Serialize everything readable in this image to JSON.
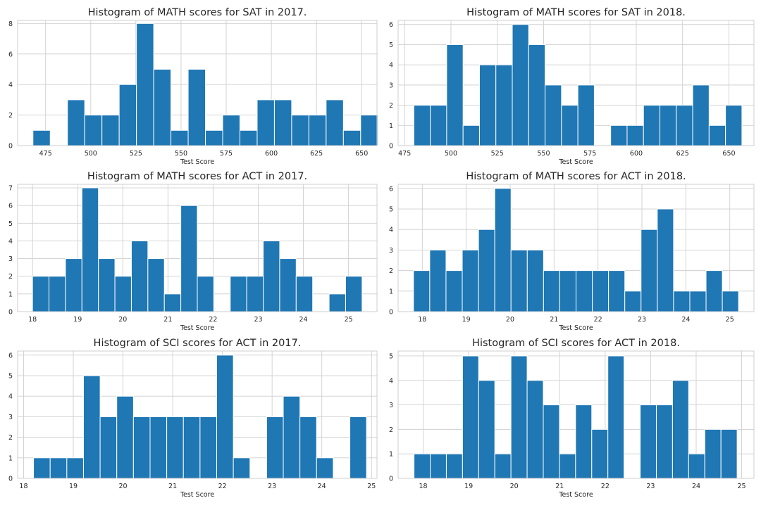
{
  "colors": {
    "bar": "#1f77b4",
    "grid": "#cfcfcf",
    "text": "#262626",
    "background": "#ffffff"
  },
  "chart_data": [
    {
      "type": "bar",
      "title": "Histogram of MATH scores for SAT in 2017.",
      "xlabel": "Test Score",
      "ylabel": "",
      "grid": true,
      "xlim": [
        459.5,
        658.5
      ],
      "ylim": [
        0,
        8.2
      ],
      "xticks": [
        475,
        500,
        525,
        550,
        575,
        600,
        625,
        650
      ],
      "xtick_labels": [
        "475",
        "500",
        "525",
        "550",
        "575",
        "600",
        "625",
        "650"
      ],
      "yticks": [
        0,
        2,
        4,
        6,
        8
      ],
      "ytick_labels": [
        "0",
        "2",
        "4",
        "6",
        "8"
      ],
      "bin_start": 468,
      "bin_width": 9.55,
      "values": [
        1,
        0,
        3,
        2,
        2,
        4,
        8,
        5,
        1,
        5,
        1,
        2,
        1,
        3,
        3,
        2,
        2,
        3,
        1,
        2
      ]
    },
    {
      "type": "bar",
      "title": "Histogram of MATH scores for SAT in 2018.",
      "xlabel": "Test Score",
      "ylabel": "",
      "grid": true,
      "xlim": [
        471.5,
        663.5
      ],
      "ylim": [
        0,
        6.2
      ],
      "xticks": [
        475,
        500,
        525,
        550,
        575,
        600,
        625,
        650
      ],
      "xtick_labels": [
        "475",
        "500",
        "525",
        "550",
        "575",
        "600",
        "625",
        "650"
      ],
      "yticks": [
        0,
        1,
        2,
        3,
        4,
        5,
        6
      ],
      "ytick_labels": [
        "0",
        "1",
        "2",
        "3",
        "4",
        "5",
        "6"
      ],
      "bin_start": 480,
      "bin_width": 8.85,
      "values": [
        2,
        2,
        5,
        1,
        4,
        4,
        6,
        5,
        3,
        2,
        3,
        0,
        1,
        1,
        2,
        2,
        2,
        3,
        1,
        2
      ]
    },
    {
      "type": "bar",
      "title": "Histogram of MATH scores for ACT in 2017.",
      "xlabel": "Test Score",
      "ylabel": "",
      "grid": true,
      "xlim": [
        17.67,
        25.63
      ],
      "ylim": [
        0,
        7.2
      ],
      "xticks": [
        18,
        19,
        20,
        21,
        22,
        23,
        24,
        25
      ],
      "xtick_labels": [
        "18",
        "19",
        "20",
        "21",
        "22",
        "23",
        "24",
        "25"
      ],
      "yticks": [
        0,
        1,
        2,
        3,
        4,
        5,
        6,
        7
      ],
      "ytick_labels": [
        "0",
        "1",
        "2",
        "3",
        "4",
        "5",
        "6",
        "7"
      ],
      "bin_start": 18.0,
      "bin_width": 0.365,
      "values": [
        2,
        2,
        3,
        7,
        3,
        2,
        4,
        3,
        1,
        6,
        2,
        0,
        2,
        2,
        4,
        3,
        2,
        0,
        1,
        2
      ]
    },
    {
      "type": "bar",
      "title": "Histogram of MATH scores for ACT in 2018.",
      "xlabel": "Test Score",
      "ylabel": "",
      "grid": true,
      "xlim": [
        17.45,
        25.55
      ],
      "ylim": [
        0,
        6.2
      ],
      "xticks": [
        18,
        19,
        20,
        21,
        22,
        23,
        24,
        25
      ],
      "xtick_labels": [
        "18",
        "19",
        "20",
        "21",
        "22",
        "23",
        "24",
        "25"
      ],
      "yticks": [
        0,
        1,
        2,
        3,
        4,
        5,
        6
      ],
      "ytick_labels": [
        "0",
        "1",
        "2",
        "3",
        "4",
        "5",
        "6"
      ],
      "bin_start": 17.8,
      "bin_width": 0.37,
      "values": [
        2,
        3,
        2,
        3,
        4,
        6,
        3,
        3,
        2,
        2,
        2,
        2,
        2,
        1,
        4,
        5,
        1,
        1,
        2,
        1
      ]
    },
    {
      "type": "bar",
      "title": "Histogram of SCI scores for ACT in 2017.",
      "xlabel": "Test Score",
      "ylabel": "",
      "grid": true,
      "xlim": [
        17.88,
        25.11
      ],
      "ylim": [
        0,
        6.2
      ],
      "xticks": [
        18,
        19,
        20,
        21,
        22,
        23,
        24,
        25
      ],
      "xtick_labels": [
        "18",
        "19",
        "20",
        "21",
        "22",
        "23",
        "24",
        "25"
      ],
      "yticks": [
        0,
        1,
        2,
        3,
        4,
        5,
        6
      ],
      "ytick_labels": [
        "0",
        "1",
        "2",
        "3",
        "4",
        "5",
        "6"
      ],
      "bin_start": 18.2,
      "bin_width": 0.335,
      "values": [
        1,
        1,
        1,
        5,
        3,
        4,
        3,
        3,
        3,
        3,
        3,
        6,
        1,
        0,
        3,
        4,
        3,
        1,
        0,
        3
      ]
    },
    {
      "type": "bar",
      "title": "Histogram of SCI scores for ACT in 2018.",
      "xlabel": "Test Score",
      "ylabel": "",
      "grid": true,
      "xlim": [
        17.45,
        25.27
      ],
      "ylim": [
        0,
        5.2
      ],
      "xticks": [
        18,
        19,
        20,
        21,
        22,
        23,
        24,
        25
      ],
      "xtick_labels": [
        "18",
        "19",
        "20",
        "21",
        "22",
        "23",
        "24",
        "25"
      ],
      "yticks": [
        0,
        1,
        2,
        3,
        4,
        5
      ],
      "ytick_labels": [
        "0",
        "1",
        "2",
        "3",
        "4",
        "5"
      ],
      "bin_start": 17.8,
      "bin_width": 0.355,
      "values": [
        1,
        1,
        1,
        5,
        4,
        1,
        5,
        4,
        3,
        1,
        3,
        2,
        5,
        0,
        3,
        3,
        4,
        1,
        2,
        2
      ]
    }
  ]
}
